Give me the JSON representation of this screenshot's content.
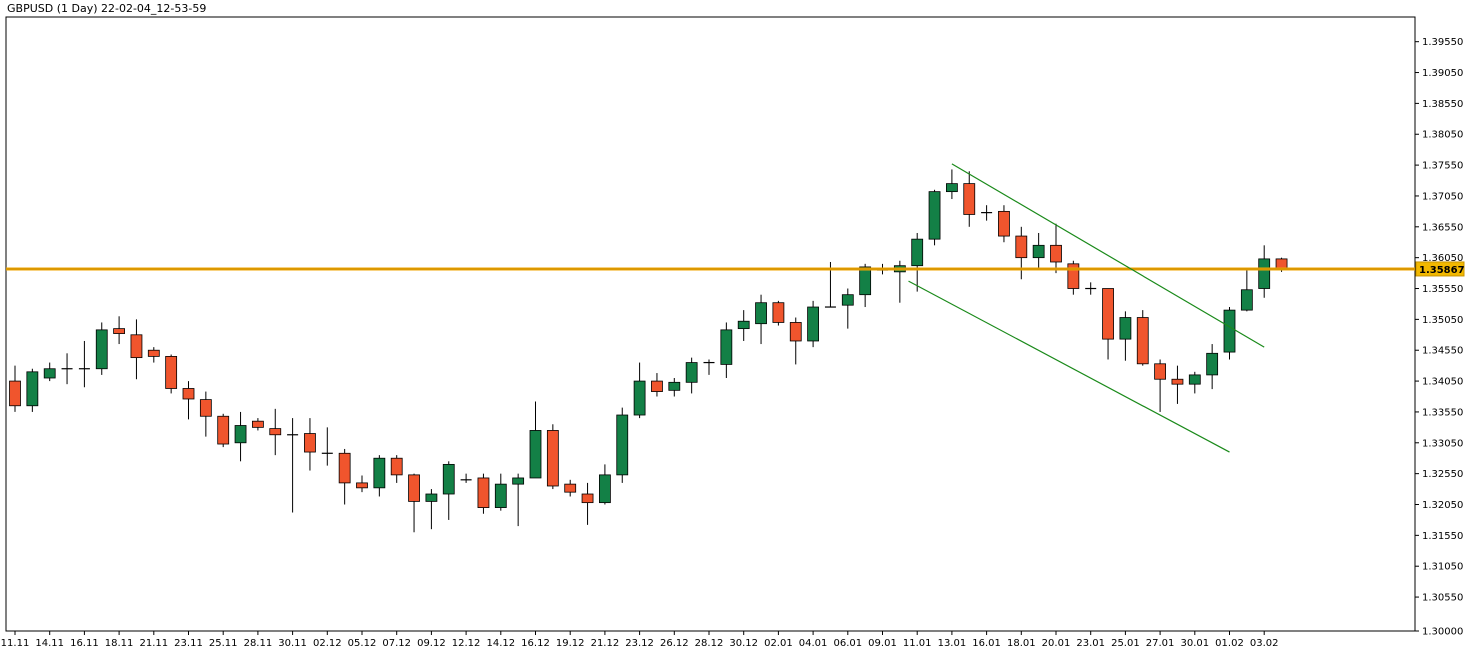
{
  "header": {
    "title": "GBPUSD (1 Day) 22-02-04_12-53-59"
  },
  "colors": {
    "bull": "#138046",
    "bear": "#f0552d",
    "wick": "#000000",
    "level_line": "#f0a500",
    "trend_line": "#1a8a1a",
    "price_tag": "#f2b800",
    "border": "#000000"
  },
  "chart_data": {
    "type": "candlestick",
    "symbol": "GBPUSD",
    "timeframe": "1 Day",
    "ylim": [
      1.3,
      1.3995
    ],
    "y_ticks": [
      "1.39550",
      "1.39050",
      "1.38550",
      "1.38050",
      "1.37550",
      "1.37050",
      "1.36550",
      "1.36050",
      "1.35550",
      "1.35050",
      "1.34550",
      "1.34050",
      "1.33550",
      "1.33050",
      "1.32550",
      "1.32050",
      "1.31550",
      "1.31050",
      "1.30550",
      "1.30000"
    ],
    "x_ticks": [
      {
        "label": "11.11",
        "index": 0
      },
      {
        "label": "14.11",
        "index": 2
      },
      {
        "label": "16.11",
        "index": 4
      },
      {
        "label": "18.11",
        "index": 6
      },
      {
        "label": "21.11",
        "index": 8
      },
      {
        "label": "23.11",
        "index": 10
      },
      {
        "label": "25.11",
        "index": 12
      },
      {
        "label": "28.11",
        "index": 14
      },
      {
        "label": "30.11",
        "index": 16
      },
      {
        "label": "02.12",
        "index": 18
      },
      {
        "label": "05.12",
        "index": 20
      },
      {
        "label": "07.12",
        "index": 22
      },
      {
        "label": "09.12",
        "index": 24
      },
      {
        "label": "12.12",
        "index": 26
      },
      {
        "label": "14.12",
        "index": 28
      },
      {
        "label": "16.12",
        "index": 30
      },
      {
        "label": "19.12",
        "index": 32
      },
      {
        "label": "21.12",
        "index": 34
      },
      {
        "label": "23.12",
        "index": 36
      },
      {
        "label": "26.12",
        "index": 38
      },
      {
        "label": "28.12",
        "index": 40
      },
      {
        "label": "30.12",
        "index": 42
      },
      {
        "label": "02.01",
        "index": 44
      },
      {
        "label": "04.01",
        "index": 46
      },
      {
        "label": "06.01",
        "index": 48
      },
      {
        "label": "09.01",
        "index": 50
      },
      {
        "label": "11.01",
        "index": 52
      },
      {
        "label": "13.01",
        "index": 54
      },
      {
        "label": "16.01",
        "index": 56
      },
      {
        "label": "18.01",
        "index": 58
      },
      {
        "label": "20.01",
        "index": 60
      },
      {
        "label": "23.01",
        "index": 62
      },
      {
        "label": "25.01",
        "index": 64
      },
      {
        "label": "27.01",
        "index": 66
      },
      {
        "label": "30.01",
        "index": 68
      },
      {
        "label": "01.02",
        "index": 70
      },
      {
        "label": "03.02",
        "index": 72
      }
    ],
    "candles": [
      {
        "o": 1.3405,
        "h": 1.343,
        "l": 1.3355,
        "c": 1.3365
      },
      {
        "o": 1.3365,
        "h": 1.3425,
        "l": 1.3355,
        "c": 1.342
      },
      {
        "o": 1.341,
        "h": 1.3435,
        "l": 1.3405,
        "c": 1.3425
      },
      {
        "o": 1.3425,
        "h": 1.345,
        "l": 1.34,
        "c": 1.3425
      },
      {
        "o": 1.3425,
        "h": 1.347,
        "l": 1.3395,
        "c": 1.3425
      },
      {
        "o": 1.3425,
        "h": 1.35,
        "l": 1.3415,
        "c": 1.3488
      },
      {
        "o": 1.349,
        "h": 1.351,
        "l": 1.3465,
        "c": 1.3482
      },
      {
        "o": 1.348,
        "h": 1.3505,
        "l": 1.3408,
        "c": 1.3443
      },
      {
        "o": 1.3455,
        "h": 1.346,
        "l": 1.3435,
        "c": 1.3445
      },
      {
        "o": 1.3445,
        "h": 1.3448,
        "l": 1.3385,
        "c": 1.3393
      },
      {
        "o": 1.3393,
        "h": 1.3405,
        "l": 1.3343,
        "c": 1.3376
      },
      {
        "o": 1.3375,
        "h": 1.3388,
        "l": 1.3315,
        "c": 1.3348
      },
      {
        "o": 1.3348,
        "h": 1.3352,
        "l": 1.3298,
        "c": 1.3303
      },
      {
        "o": 1.3305,
        "h": 1.3355,
        "l": 1.3275,
        "c": 1.3333
      },
      {
        "o": 1.334,
        "h": 1.3345,
        "l": 1.3325,
        "c": 1.333
      },
      {
        "o": 1.3328,
        "h": 1.336,
        "l": 1.3285,
        "c": 1.3318
      },
      {
        "o": 1.3318,
        "h": 1.3345,
        "l": 1.3192,
        "c": 1.3318
      },
      {
        "o": 1.332,
        "h": 1.3345,
        "l": 1.326,
        "c": 1.329
      },
      {
        "o": 1.3288,
        "h": 1.333,
        "l": 1.3268,
        "c": 1.3288
      },
      {
        "o": 1.3288,
        "h": 1.3295,
        "l": 1.3205,
        "c": 1.324
      },
      {
        "o": 1.324,
        "h": 1.3252,
        "l": 1.3225,
        "c": 1.3232
      },
      {
        "o": 1.3232,
        "h": 1.3285,
        "l": 1.3218,
        "c": 1.328
      },
      {
        "o": 1.328,
        "h": 1.3285,
        "l": 1.324,
        "c": 1.3253
      },
      {
        "o": 1.3253,
        "h": 1.3255,
        "l": 1.316,
        "c": 1.321
      },
      {
        "o": 1.321,
        "h": 1.323,
        "l": 1.3165,
        "c": 1.3222
      },
      {
        "o": 1.3222,
        "h": 1.3275,
        "l": 1.318,
        "c": 1.327
      },
      {
        "o": 1.3245,
        "h": 1.3255,
        "l": 1.324,
        "c": 1.3245
      },
      {
        "o": 1.3248,
        "h": 1.3255,
        "l": 1.319,
        "c": 1.32
      },
      {
        "o": 1.32,
        "h": 1.3255,
        "l": 1.3195,
        "c": 1.3238
      },
      {
        "o": 1.3238,
        "h": 1.3255,
        "l": 1.317,
        "c": 1.3248
      },
      {
        "o": 1.3248,
        "h": 1.3372,
        "l": 1.3248,
        "c": 1.3325
      },
      {
        "o": 1.3325,
        "h": 1.3335,
        "l": 1.323,
        "c": 1.3235
      },
      {
        "o": 1.3238,
        "h": 1.3245,
        "l": 1.3218,
        "c": 1.3225
      },
      {
        "o": 1.3222,
        "h": 1.324,
        "l": 1.3172,
        "c": 1.3208
      },
      {
        "o": 1.3208,
        "h": 1.327,
        "l": 1.3205,
        "c": 1.3253
      },
      {
        "o": 1.3253,
        "h": 1.3362,
        "l": 1.324,
        "c": 1.335
      },
      {
        "o": 1.335,
        "h": 1.3435,
        "l": 1.3345,
        "c": 1.3405
      },
      {
        "o": 1.3405,
        "h": 1.3418,
        "l": 1.338,
        "c": 1.3388
      },
      {
        "o": 1.339,
        "h": 1.341,
        "l": 1.338,
        "c": 1.3403
      },
      {
        "o": 1.3403,
        "h": 1.3443,
        "l": 1.3385,
        "c": 1.3435
      },
      {
        "o": 1.3435,
        "h": 1.344,
        "l": 1.3415,
        "c": 1.3435
      },
      {
        "o": 1.3432,
        "h": 1.35,
        "l": 1.341,
        "c": 1.3488
      },
      {
        "o": 1.349,
        "h": 1.352,
        "l": 1.347,
        "c": 1.3502
      },
      {
        "o": 1.3498,
        "h": 1.3545,
        "l": 1.3465,
        "c": 1.3532
      },
      {
        "o": 1.3532,
        "h": 1.3535,
        "l": 1.3495,
        "c": 1.35
      },
      {
        "o": 1.35,
        "h": 1.3508,
        "l": 1.3432,
        "c": 1.347
      },
      {
        "o": 1.347,
        "h": 1.3535,
        "l": 1.346,
        "c": 1.3525
      },
      {
        "o": 1.3525,
        "h": 1.3598,
        "l": 1.3525,
        "c": 1.3525
      },
      {
        "o": 1.3528,
        "h": 1.3555,
        "l": 1.349,
        "c": 1.3545
      },
      {
        "o": 1.3545,
        "h": 1.3595,
        "l": 1.3525,
        "c": 1.359
      },
      {
        "o": 1.3585,
        "h": 1.3595,
        "l": 1.3578,
        "c": 1.3585
      },
      {
        "o": 1.3582,
        "h": 1.36,
        "l": 1.3532,
        "c": 1.3592
      },
      {
        "o": 1.3592,
        "h": 1.3645,
        "l": 1.355,
        "c": 1.3635
      },
      {
        "o": 1.3635,
        "h": 1.3715,
        "l": 1.3625,
        "c": 1.3712
      },
      {
        "o": 1.3712,
        "h": 1.3748,
        "l": 1.37,
        "c": 1.3725
      },
      {
        "o": 1.3725,
        "h": 1.3745,
        "l": 1.3655,
        "c": 1.3675
      },
      {
        "o": 1.3678,
        "h": 1.369,
        "l": 1.3665,
        "c": 1.3678
      },
      {
        "o": 1.368,
        "h": 1.369,
        "l": 1.363,
        "c": 1.364
      },
      {
        "o": 1.364,
        "h": 1.3655,
        "l": 1.357,
        "c": 1.3605
      },
      {
        "o": 1.3605,
        "h": 1.3645,
        "l": 1.3585,
        "c": 1.3625
      },
      {
        "o": 1.3625,
        "h": 1.366,
        "l": 1.358,
        "c": 1.3598
      },
      {
        "o": 1.3595,
        "h": 1.36,
        "l": 1.3545,
        "c": 1.3555
      },
      {
        "o": 1.3555,
        "h": 1.3565,
        "l": 1.3545,
        "c": 1.3555
      },
      {
        "o": 1.3555,
        "h": 1.3555,
        "l": 1.344,
        "c": 1.3473
      },
      {
        "o": 1.3473,
        "h": 1.3518,
        "l": 1.3438,
        "c": 1.3508
      },
      {
        "o": 1.3508,
        "h": 1.352,
        "l": 1.343,
        "c": 1.3433
      },
      {
        "o": 1.3433,
        "h": 1.344,
        "l": 1.3355,
        "c": 1.3408
      },
      {
        "o": 1.3408,
        "h": 1.343,
        "l": 1.3368,
        "c": 1.34
      },
      {
        "o": 1.34,
        "h": 1.342,
        "l": 1.3385,
        "c": 1.3415
      },
      {
        "o": 1.3415,
        "h": 1.3465,
        "l": 1.3392,
        "c": 1.345
      },
      {
        "o": 1.3452,
        "h": 1.3525,
        "l": 1.344,
        "c": 1.352
      },
      {
        "o": 1.352,
        "h": 1.3588,
        "l": 1.3518,
        "c": 1.3553
      },
      {
        "o": 1.3555,
        "h": 1.3625,
        "l": 1.354,
        "c": 1.3603
      },
      {
        "o": 1.3603,
        "h": 1.3605,
        "l": 1.3582,
        "c": 1.3588
      }
    ],
    "horizontal_level": {
      "value": 1.35867,
      "label": "1.35867"
    },
    "trend_lines": [
      {
        "start": {
          "index": 54.0,
          "price": 1.3757
        },
        "end": {
          "index": 72.0,
          "price": 1.346
        }
      },
      {
        "start": {
          "index": 51.5,
          "price": 1.3567
        },
        "end": {
          "index": 70.0,
          "price": 1.329
        }
      }
    ]
  }
}
